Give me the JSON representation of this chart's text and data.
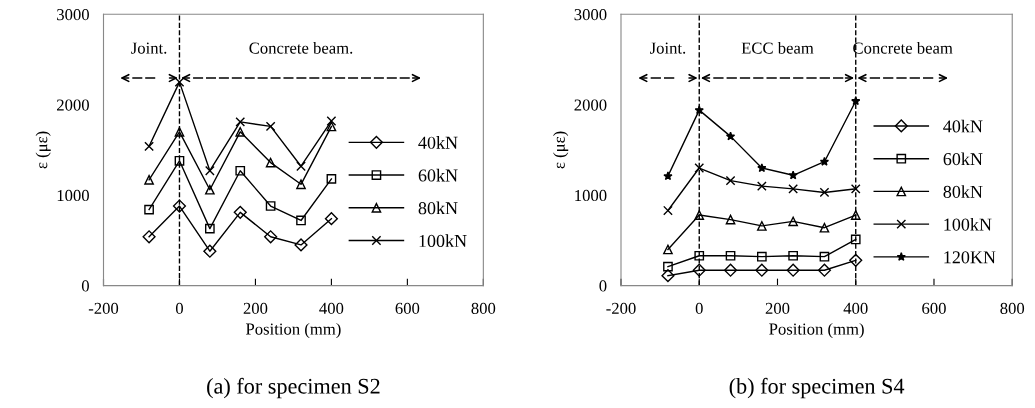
{
  "chart_data": [
    {
      "type": "line",
      "xlabel": "Position (mm)",
      "ylabel": "ε (με)",
      "xlim": [
        -200,
        800
      ],
      "ylim": [
        0,
        3000
      ],
      "xticks": [
        -200,
        0,
        200,
        400,
        600,
        800
      ],
      "yticks": [
        0,
        1000,
        2000,
        3000
      ],
      "grid": false,
      "legend": "right",
      "x": [
        -80,
        0,
        80,
        160,
        240,
        320,
        400
      ],
      "series": [
        {
          "name": "40kN",
          "color": "#000000",
          "marker": "diamond",
          "values": [
            540,
            880,
            380,
            810,
            540,
            450,
            740
          ]
        },
        {
          "name": "60kN",
          "color": "#000000",
          "marker": "square",
          "values": [
            840,
            1380,
            630,
            1270,
            880,
            720,
            1180
          ]
        },
        {
          "name": "80kN",
          "color": "#000000",
          "marker": "triangle",
          "values": [
            1170,
            1700,
            1060,
            1700,
            1360,
            1120,
            1760
          ]
        },
        {
          "name": "100kN",
          "color": "#000000",
          "marker": "cross",
          "values": [
            1540,
            2250,
            1270,
            1810,
            1760,
            1320,
            1820
          ]
        }
      ],
      "ref_lines": [
        {
          "axis": "x",
          "value": 0,
          "line_style": "dashed",
          "color": "#000000"
        }
      ],
      "annotations": [
        "Joint.",
        "Concrete beam.",
        "(a) for specimen S2"
      ]
    },
    {
      "type": "line",
      "xlabel": "Position (mm)",
      "ylabel": "ε (με)",
      "xlim": [
        -200,
        800
      ],
      "ylim": [
        0,
        3000
      ],
      "xticks": [
        -200,
        0,
        200,
        400,
        600,
        800
      ],
      "yticks": [
        0,
        1000,
        2000,
        3000
      ],
      "grid": false,
      "legend": "right",
      "x": [
        -80,
        0,
        80,
        160,
        240,
        320,
        400
      ],
      "series": [
        {
          "name": "40kN",
          "color": "#000000",
          "marker": "diamond",
          "values": [
            110,
            170,
            170,
            170,
            170,
            170,
            280
          ]
        },
        {
          "name": "60kN",
          "color": "#000000",
          "marker": "square",
          "values": [
            210,
            330,
            330,
            320,
            330,
            320,
            510
          ]
        },
        {
          "name": "80kN",
          "color": "#000000",
          "marker": "triangle",
          "values": [
            400,
            780,
            730,
            660,
            710,
            640,
            780
          ]
        },
        {
          "name": "100kN",
          "color": "#000000",
          "marker": "cross",
          "values": [
            830,
            1300,
            1160,
            1100,
            1070,
            1030,
            1070
          ]
        },
        {
          "name": "120KN",
          "color": "#000000",
          "marker": "star",
          "values": [
            1210,
            1940,
            1650,
            1300,
            1220,
            1370,
            2040
          ]
        }
      ],
      "ref_lines": [
        {
          "axis": "x",
          "value": 0,
          "line_style": "dashed",
          "color": "#000000"
        },
        {
          "axis": "x",
          "value": 400,
          "line_style": "dashed",
          "color": "#000000"
        }
      ],
      "annotations": [
        "Joint.",
        "ECC beam",
        "Concrete beam",
        "(b) for specimen S4"
      ]
    }
  ]
}
